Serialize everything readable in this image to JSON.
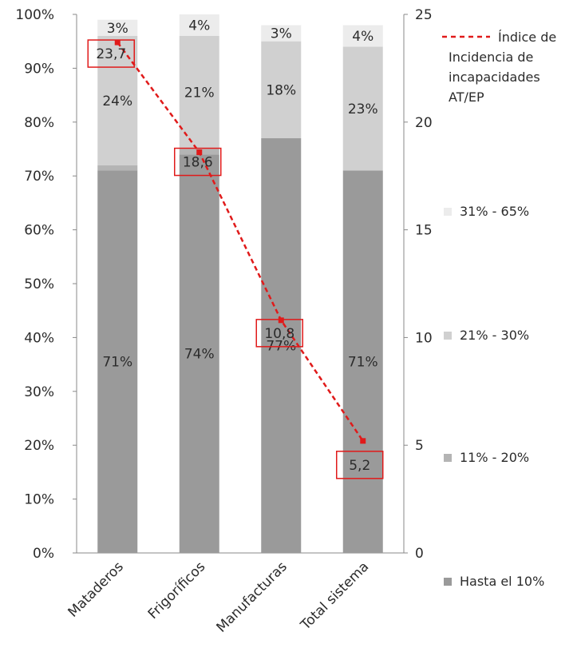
{
  "chart_data": {
    "type": "bar",
    "stacked": true,
    "categories": [
      "Mataderos",
      "Frigoríficos",
      "Manufacturas",
      "Total sistema"
    ],
    "series": [
      {
        "name": "Hasta el 10%",
        "values": [
          71,
          74,
          77,
          71
        ],
        "labels": [
          "71%",
          "74%",
          "77%",
          "71%"
        ],
        "color": "#9a9a9a"
      },
      {
        "name": "11% - 20%",
        "values": [
          1,
          1,
          0,
          0
        ],
        "labels": [
          "",
          "",
          "",
          ""
        ],
        "color": "#b4b4b4"
      },
      {
        "name": "21% - 30%",
        "values": [
          24,
          21,
          18,
          23
        ],
        "labels": [
          "24%",
          "21%",
          "18%",
          "23%"
        ],
        "color": "#d0d0d0"
      },
      {
        "name": "31% - 65%",
        "values": [
          3,
          4,
          3,
          4
        ],
        "labels": [
          "3%",
          "4%",
          "3%",
          "4%"
        ],
        "color": "#ececec"
      }
    ],
    "line_series": {
      "name": "Índice de Incidencia de incapacidades AT/EP",
      "values": [
        23.7,
        18.6,
        10.8,
        5.2
      ],
      "labels": [
        "23,7",
        "18,6",
        "10,8",
        "5,2"
      ],
      "color": "#e01a1a"
    },
    "y_left": {
      "ylim": [
        0,
        100
      ],
      "ticks": [
        "0%",
        "10%",
        "20%",
        "30%",
        "40%",
        "50%",
        "60%",
        "70%",
        "80%",
        "90%",
        "100%"
      ]
    },
    "y_right": {
      "ylim": [
        0,
        25
      ],
      "ticks": [
        "0",
        "5",
        "10",
        "15",
        "20",
        "25"
      ]
    },
    "legend": {
      "placement": "right",
      "entries": [
        "Índice de Incidencia de incapacidades AT/EP",
        "31% - 65%",
        "21% - 30%",
        "11% - 20%",
        "Hasta el 10%"
      ]
    }
  }
}
